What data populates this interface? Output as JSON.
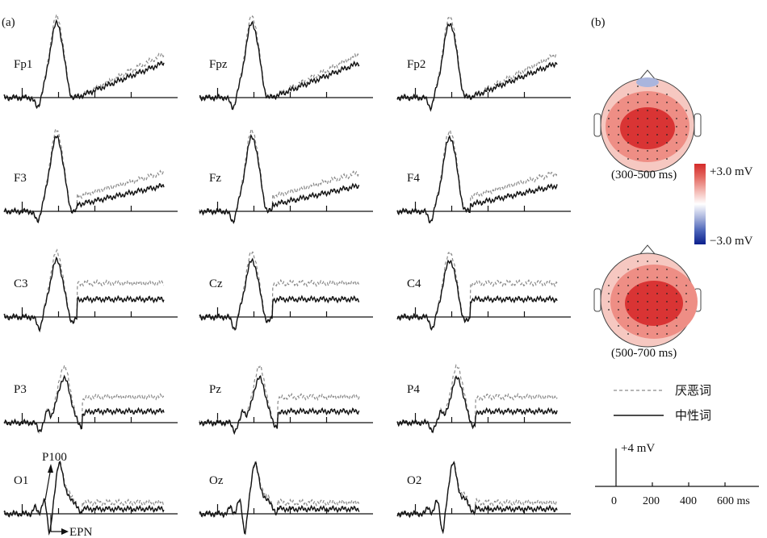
{
  "panels": {
    "a": "(a)",
    "b": "(b)"
  },
  "channels": [
    "Fp1",
    "Fpz",
    "Fp2",
    "F3",
    "Fz",
    "F4",
    "C3",
    "Cz",
    "C4",
    "P3",
    "Pz",
    "P4",
    "O1",
    "Oz",
    "O2"
  ],
  "annotations": {
    "p100": "P100",
    "epn": "EPN"
  },
  "topomaps": [
    {
      "label": "(300-500 ms)"
    },
    {
      "label": "(500-700 ms)"
    }
  ],
  "colorbar": {
    "max_label": "+3.0 mV",
    "min_label": "−3.0 mV",
    "max": 3.0,
    "min": -3.0,
    "colors": [
      "#0b1f8c",
      "#4a63b8",
      "#aab5dd",
      "#ffffff",
      "#f3b6b0",
      "#e46a62",
      "#d42a2a"
    ]
  },
  "legend": [
    {
      "name": "厌恶词",
      "style": "dashed",
      "color": "#8a8a8a"
    },
    {
      "name": "中性词",
      "style": "solid",
      "color": "#111111"
    }
  ],
  "scale": {
    "amplitude_label": "+4 mV",
    "time_ticks": [
      "0",
      "200",
      "400",
      "600 ms"
    ]
  },
  "chart_data": {
    "type": "line",
    "xlabel": "",
    "ylabel": "",
    "x_ms": [
      -100,
      -80,
      -60,
      -40,
      -20,
      0,
      20,
      40,
      60,
      80,
      100,
      120,
      140,
      160,
      180,
      200,
      220,
      240,
      260,
      280,
      300,
      320,
      340,
      360,
      380,
      400,
      420,
      440,
      460,
      480,
      500,
      520,
      540,
      560,
      580,
      600,
      620,
      640,
      660,
      680,
      700,
      720,
      740,
      760,
      780
    ],
    "amplitude_scale_mV": 4,
    "series_names": [
      "厌恶词",
      "中性词"
    ]
  }
}
